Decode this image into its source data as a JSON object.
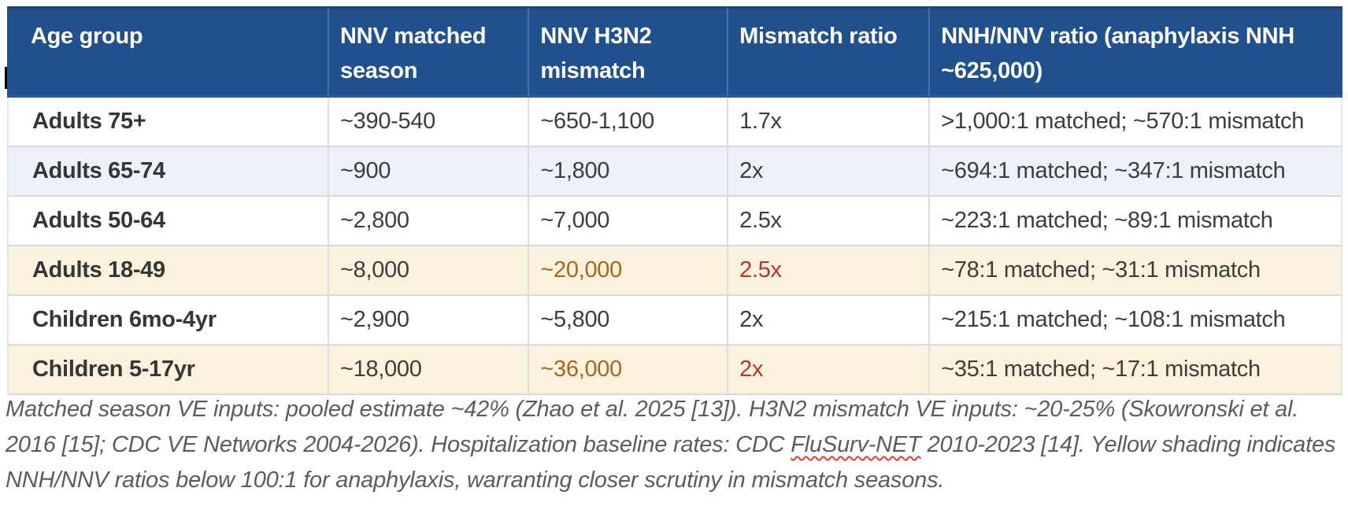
{
  "table": {
    "columns": [
      {
        "label": "Age group"
      },
      {
        "label": "NNV matched season"
      },
      {
        "label": "NNV H3N2 mismatch"
      },
      {
        "label": "Mismatch ratio"
      },
      {
        "label": "NNH/NNV ratio (anaphylaxis NNH ~625,000)"
      }
    ],
    "rows": [
      {
        "age_group": "Adults 75+",
        "nnv_matched": "~390-540",
        "nnv_mismatch": "~650-1,100",
        "mismatch_ratio": "1.7x",
        "nnh_nnv": ">1,000:1 matched; ~570:1 mismatch",
        "highlight": false
      },
      {
        "age_group": "Adults 65-74",
        "nnv_matched": "~900",
        "nnv_mismatch": "~1,800",
        "mismatch_ratio": "2x",
        "nnh_nnv": "~694:1 matched; ~347:1 mismatch",
        "highlight": false
      },
      {
        "age_group": "Adults 50-64",
        "nnv_matched": "~2,800",
        "nnv_mismatch": "~7,000",
        "mismatch_ratio": "2.5x",
        "nnh_nnv": "~223:1 matched; ~89:1 mismatch",
        "highlight": false
      },
      {
        "age_group": "Adults 18-49",
        "nnv_matched": "~8,000",
        "nnv_mismatch": "~20,000",
        "mismatch_ratio": "2.5x",
        "nnh_nnv": "~78:1 matched; ~31:1 mismatch",
        "highlight": true
      },
      {
        "age_group": "Children 6mo-4yr",
        "nnv_matched": "~2,900",
        "nnv_mismatch": "~5,800",
        "mismatch_ratio": "2x",
        "nnh_nnv": "~215:1 matched; ~108:1 mismatch",
        "highlight": false
      },
      {
        "age_group": "Children 5-17yr",
        "nnv_matched": "~18,000",
        "nnv_mismatch": "~36,000",
        "mismatch_ratio": "2x",
        "nnh_nnv": "~35:1 matched; ~17:1 mismatch",
        "highlight": true
      }
    ]
  },
  "caption": {
    "part1": "Matched season VE inputs: pooled estimate ~42% (Zhao et al. 2025 [13]). H3N2 mismatch VE inputs: ~20-25% (Skowronski et al. 2016 [15]; CDC VE Networks 2004-2026). Hospitalization baseline rates: CDC ",
    "misspelled_word": "FluSurv-NET",
    "part2": " 2010-2023 [14]. Yellow shading indicates NNH/NNV ratios below 100:1 for anaphylaxis, warranting closer scrutiny in mismatch seasons."
  },
  "colors": {
    "header_bg": "#21508F",
    "header_text": "#FFFFFF",
    "header_border_dark": "#1A4076",
    "header_border_bottom": "#2A59A0",
    "header_divider": "#4A6FA3",
    "body_text": "#3D3D3D",
    "label_text": "#363636",
    "grid_line": "#D9D9D9",
    "grid_line_v": "#DADDE1",
    "grid_line_edge": "#E4E6E9",
    "row_alt_blue": "#EDF1F8",
    "row_highlight": "#FBF2DD",
    "warn_orange": "#A9651B",
    "warn_red": "#B5352C",
    "caption_text": "#5C5C5C",
    "spellcheck_red": "#E03C31"
  }
}
